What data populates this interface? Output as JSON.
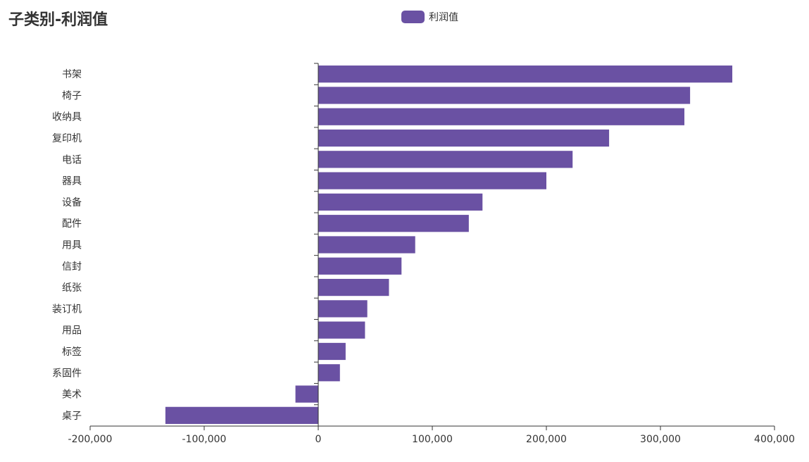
{
  "chart_data": {
    "type": "bar",
    "orientation": "horizontal",
    "title": "子类别-利润值",
    "categories": [
      "书架",
      "椅子",
      "收纳具",
      "复印机",
      "电话",
      "器具",
      "设备",
      "配件",
      "用具",
      "信封",
      "纸张",
      "装订机",
      "用品",
      "标签",
      "系固件",
      "美术",
      "桌子"
    ],
    "series": [
      {
        "name": "利润值",
        "color": "#6a51a3",
        "values": [
          363000,
          326000,
          321000,
          255000,
          223000,
          200000,
          144000,
          132000,
          85000,
          73000,
          62000,
          43000,
          41000,
          24000,
          19000,
          -20000,
          -134000
        ]
      }
    ],
    "xlim": [
      -200000,
      400000
    ],
    "xticks": [
      "-200,000",
      "-100,000",
      "0",
      "100,000",
      "200,000",
      "300,000",
      "400,000"
    ],
    "xtick_values": [
      -200000,
      -100000,
      0,
      100000,
      200000,
      300000,
      400000
    ],
    "grid": false,
    "legend_position": "top-center"
  }
}
